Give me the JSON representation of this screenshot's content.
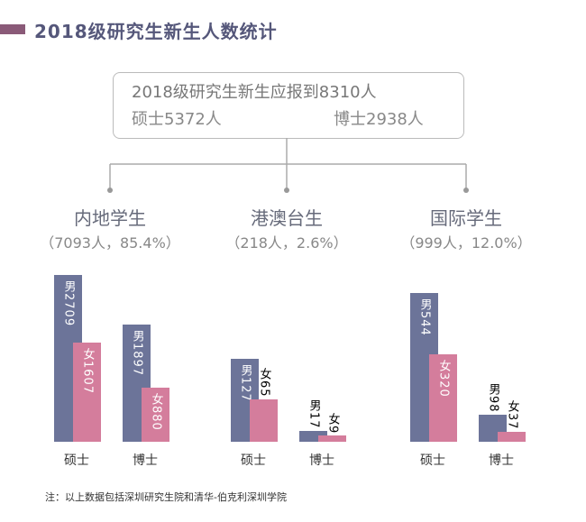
{
  "title": "2018级研究生新生人数统计",
  "summary": {
    "total": "2018级研究生新生应报到8310人",
    "master": "硕士5372人",
    "doctor": "博士2938人"
  },
  "note": "注：以上数据包括深圳研究生院和清华-伯克利深圳学院",
  "chart_data": [
    {
      "type": "bar",
      "title": "内地学生",
      "subtitle": "（7093人，85.4%）",
      "categories": [
        "硕士",
        "博士"
      ],
      "series": [
        {
          "name": "男",
          "color": "#6c7499",
          "values": [
            2709,
            1897
          ]
        },
        {
          "name": "女",
          "color": "#d47d9c",
          "values": [
            1607,
            880
          ]
        }
      ]
    },
    {
      "type": "bar",
      "title": "港澳台生",
      "subtitle": "（218人，2.6%）",
      "categories": [
        "硕士",
        "博士"
      ],
      "series": [
        {
          "name": "男",
          "color": "#6c7499",
          "values": [
            127,
            17
          ]
        },
        {
          "name": "女",
          "color": "#d47d9c",
          "values": [
            65,
            9
          ]
        }
      ]
    },
    {
      "type": "bar",
      "title": "国际学生",
      "subtitle": "（999人，12.0%）",
      "categories": [
        "硕士",
        "博士"
      ],
      "series": [
        {
          "name": "男",
          "color": "#6c7499",
          "values": [
            544,
            98
          ]
        },
        {
          "name": "女",
          "color": "#d47d9c",
          "values": [
            320,
            37
          ]
        }
      ]
    }
  ]
}
